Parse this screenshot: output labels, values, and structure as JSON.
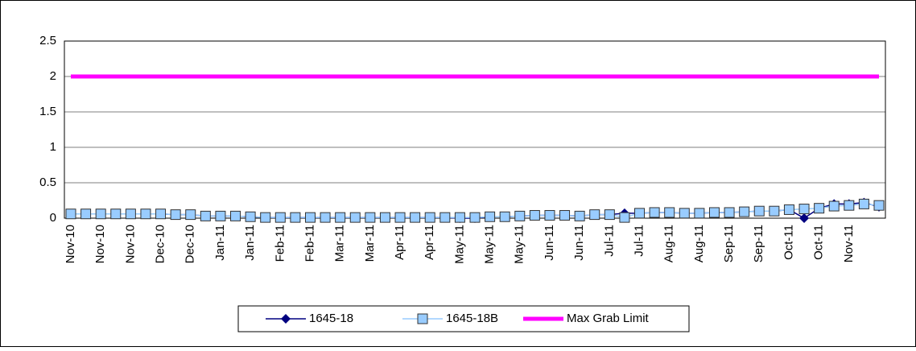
{
  "chart_data": {
    "type": "line",
    "categories": [
      "Nov-10",
      null,
      "Nov-10",
      null,
      "Nov-10",
      null,
      "Dec-10",
      null,
      "Dec-10",
      null,
      "Jan-11",
      null,
      "Jan-11",
      null,
      "Feb-11",
      null,
      "Feb-11",
      null,
      "Mar-11",
      null,
      "Mar-11",
      null,
      "Apr-11",
      null,
      "Apr-11",
      null,
      "May-11",
      null,
      "May-11",
      null,
      "May-11",
      null,
      "Jun-11",
      null,
      "Jun-11",
      null,
      "Jul-11",
      null,
      "Jul-11",
      null,
      "Aug-11",
      null,
      "Aug-11",
      null,
      "Sep-11",
      null,
      "Sep-11",
      null,
      "Oct-11",
      null,
      "Oct-11",
      null,
      "Nov-11",
      null,
      null
    ],
    "series": [
      {
        "name": "1645-18",
        "color": "#000080",
        "marker": "diamond",
        "width": 1.5,
        "values": [
          0.06,
          0.06,
          0.06,
          0.06,
          0.06,
          0.06,
          0.06,
          0.05,
          0.05,
          0.03,
          0.03,
          0.03,
          0.02,
          0.01,
          0.01,
          0.01,
          0.01,
          0.01,
          0.01,
          0.01,
          0.01,
          0.01,
          0.01,
          0.01,
          0.01,
          0.01,
          0.0,
          0.0,
          0.02,
          0.02,
          0.03,
          0.04,
          0.04,
          0.04,
          0.03,
          0.05,
          0.05,
          0.07,
          0.07,
          0.08,
          0.08,
          0.07,
          0.07,
          0.08,
          0.08,
          0.09,
          0.1,
          0.1,
          0.12,
          0.0,
          0.14,
          0.2,
          0.2,
          0.22,
          0.16
        ]
      },
      {
        "name": "1645-18B",
        "color": "#99ccff",
        "marker": "square",
        "width": 1.5,
        "values": [
          0.06,
          0.06,
          0.06,
          0.06,
          0.06,
          0.06,
          0.06,
          0.05,
          0.05,
          0.03,
          0.03,
          0.03,
          0.02,
          0.01,
          0.01,
          0.01,
          0.01,
          0.01,
          0.01,
          0.01,
          0.01,
          0.01,
          0.01,
          0.01,
          0.01,
          0.01,
          0.01,
          0.01,
          0.02,
          0.02,
          0.03,
          0.04,
          0.04,
          0.04,
          0.03,
          0.05,
          0.05,
          0.01,
          0.07,
          0.08,
          0.08,
          0.07,
          0.07,
          0.08,
          0.08,
          0.09,
          0.1,
          0.1,
          0.12,
          0.13,
          0.14,
          0.17,
          0.18,
          0.2,
          0.18
        ]
      },
      {
        "name": "Max Grab Limit",
        "color": "#ff00ff",
        "marker": "none",
        "width": 5,
        "values": [
          2,
          2,
          2,
          2,
          2,
          2,
          2,
          2,
          2,
          2,
          2,
          2,
          2,
          2,
          2,
          2,
          2,
          2,
          2,
          2,
          2,
          2,
          2,
          2,
          2,
          2,
          2,
          2,
          2,
          2,
          2,
          2,
          2,
          2,
          2,
          2,
          2,
          2,
          2,
          2,
          2,
          2,
          2,
          2,
          2,
          2,
          2,
          2,
          2,
          2,
          2,
          2,
          2,
          2,
          2
        ]
      }
    ],
    "ylim": [
      0,
      2.5
    ],
    "yticks": [
      0,
      0.5,
      1,
      1.5,
      2,
      2.5
    ],
    "grid": true,
    "legend": "bottom"
  }
}
